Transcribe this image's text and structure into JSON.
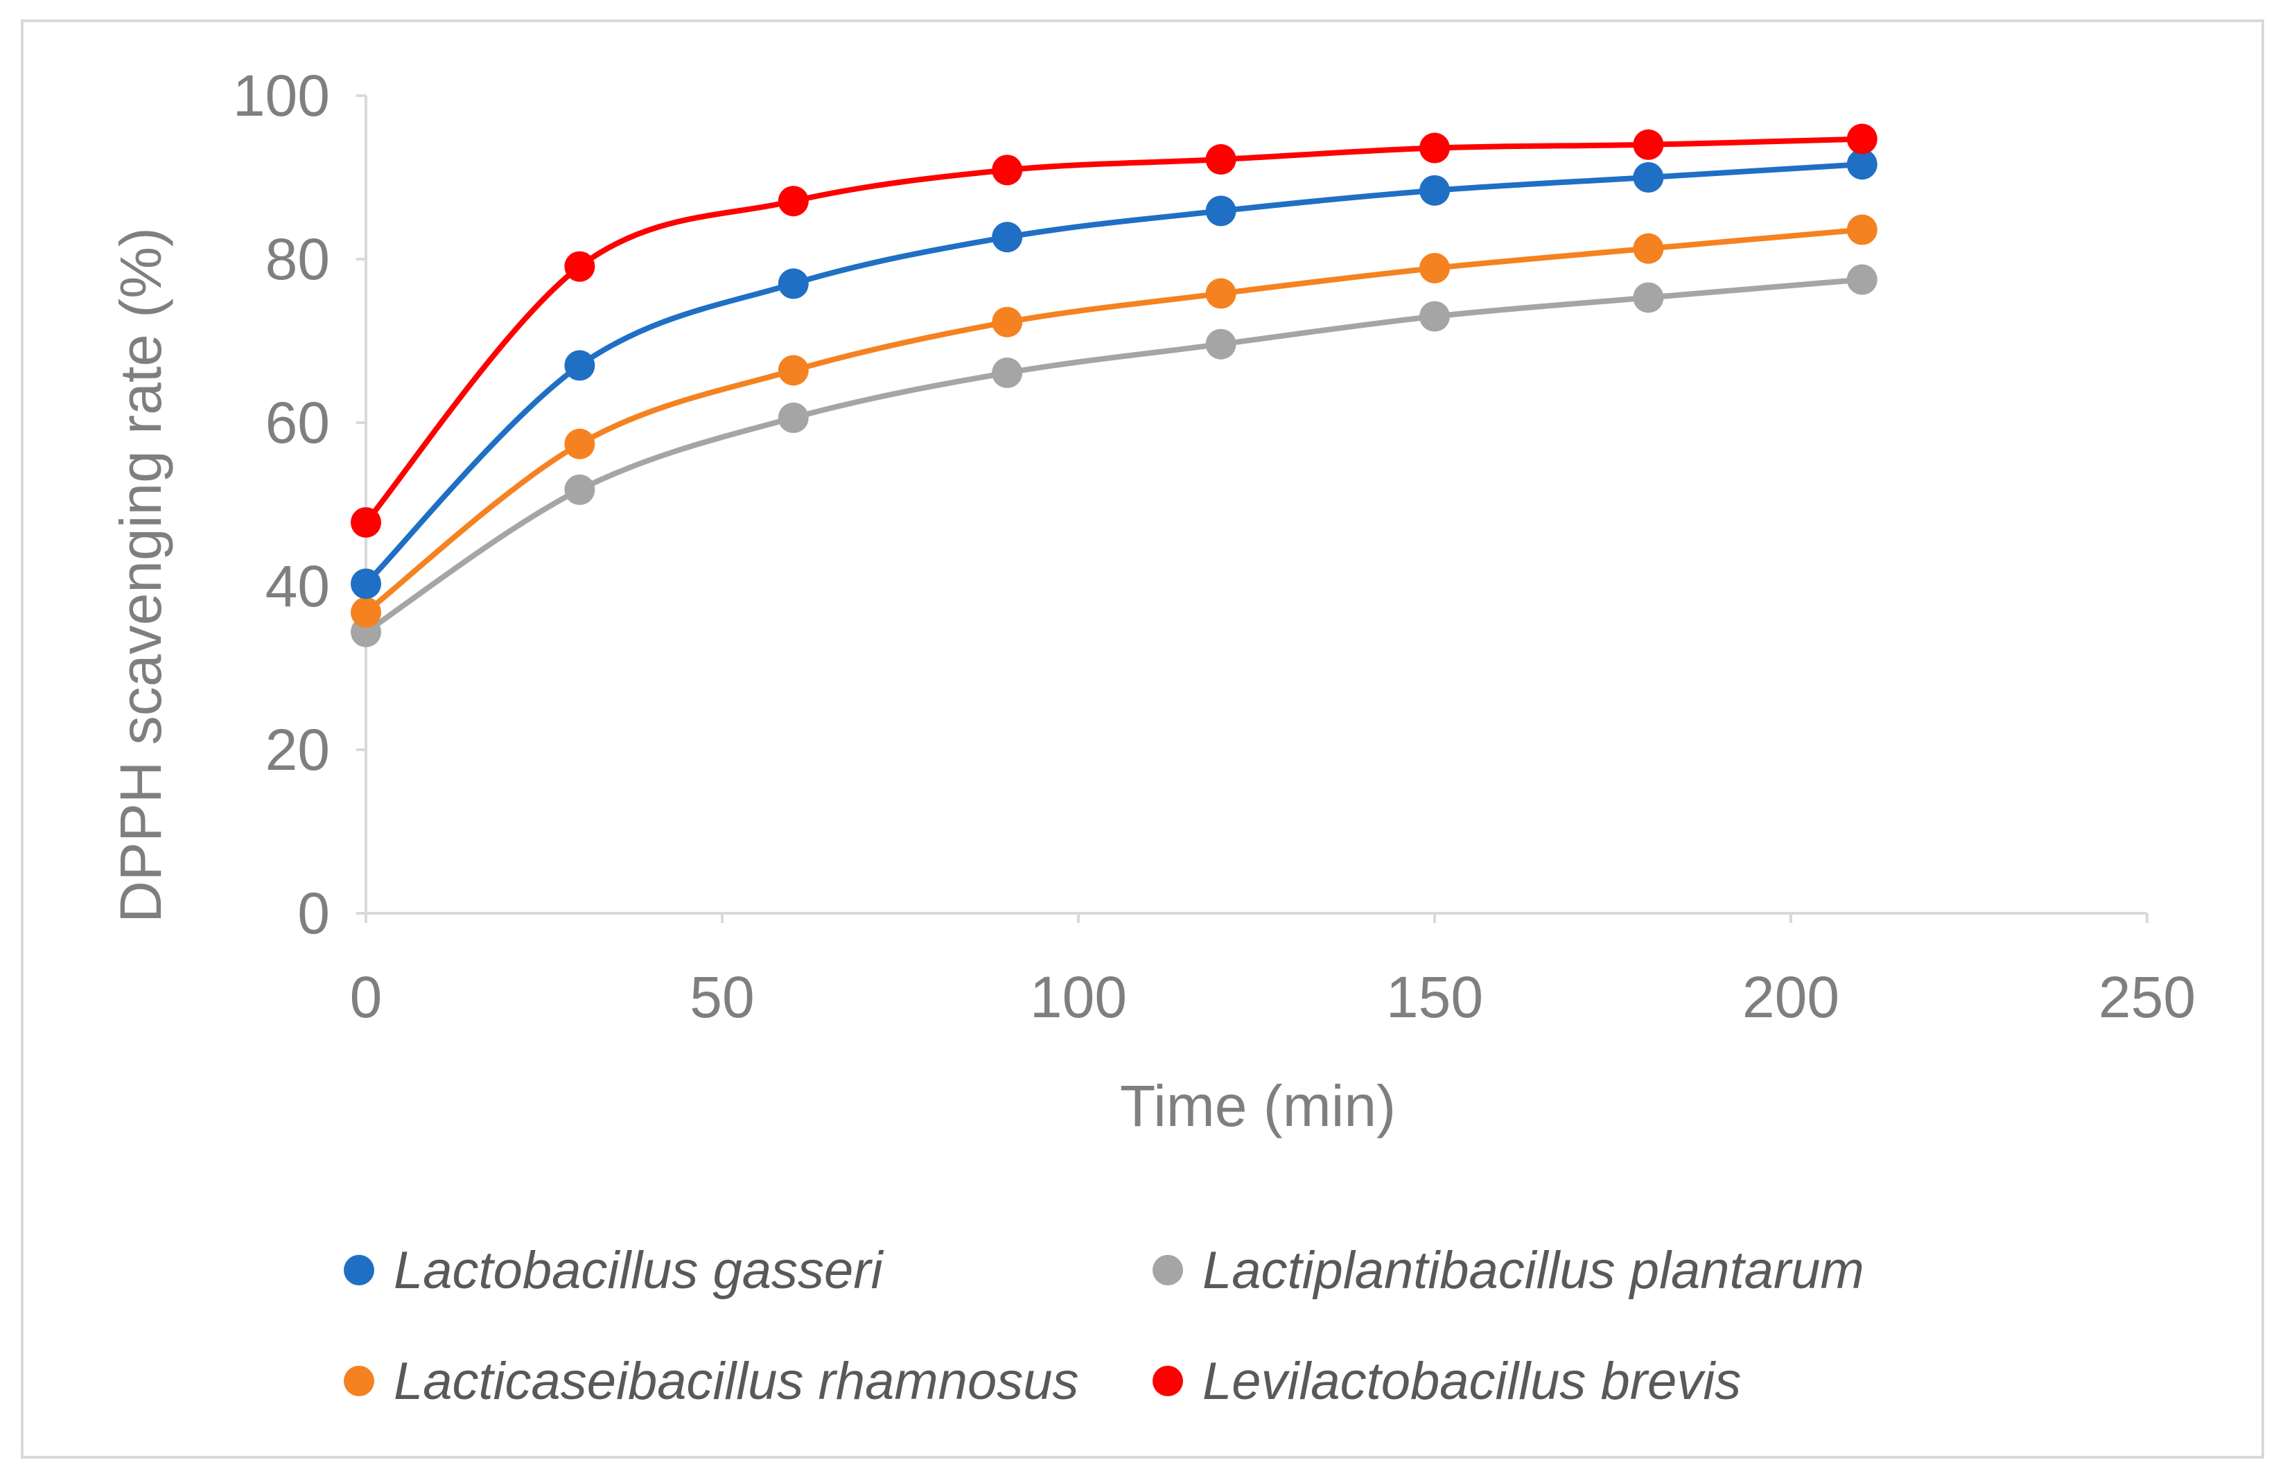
{
  "chart_data": {
    "type": "scatter",
    "xlabel": "Time (min)",
    "ylabel": "DPPH scavenging rate (%)",
    "xlim": [
      0,
      250
    ],
    "ylim": [
      0,
      100
    ],
    "xticks": [
      0,
      50,
      100,
      150,
      200,
      250
    ],
    "yticks": [
      0,
      20,
      40,
      60,
      80,
      100
    ],
    "grid": false,
    "legend_position": "bottom",
    "x": [
      0,
      30,
      60,
      90,
      120,
      150,
      180,
      210
    ],
    "series": [
      {
        "name": "Lactobacillus gasseri",
        "color": "#1f6fc5",
        "values": [
          40.3,
          67,
          77,
          82.7,
          85.9,
          88.4,
          90,
          91.6
        ]
      },
      {
        "name": "Lactiplantibacillus plantarum",
        "color": "#a5a5a5",
        "values": [
          34.4,
          51.8,
          60.6,
          66.1,
          69.6,
          73,
          75.3,
          77.5
        ]
      },
      {
        "name": "Lacticaseibacillus rhamnosus",
        "color": "#f58220",
        "values": [
          36.8,
          57.4,
          66.4,
          72.3,
          75.8,
          78.9,
          81.3,
          83.6
        ]
      },
      {
        "name": "Levilactobacillus brevis",
        "color": "#ff0000",
        "values": [
          47.8,
          79.1,
          87.1,
          90.9,
          92.2,
          93.6,
          94,
          94.7
        ]
      }
    ]
  }
}
